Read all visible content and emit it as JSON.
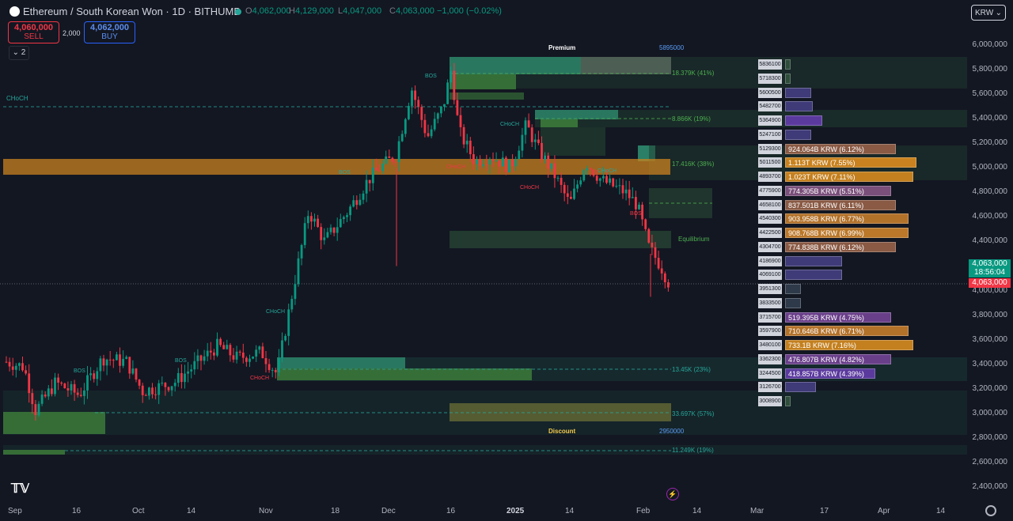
{
  "header": {
    "title": "Ethereum / South Korean Won · 1D · BITHUMB",
    "ohlc": [
      {
        "k": "O",
        "v": "4,062,000"
      },
      {
        "k": "H",
        "v": "4,129,000"
      },
      {
        "k": "L",
        "v": "4,047,000"
      },
      {
        "k": "C",
        "v": "4,063,000 −1,000 (−0.02%)"
      }
    ],
    "sell": {
      "price": "4,060,000",
      "label": "SELL"
    },
    "buy": {
      "price": "4,062,000",
      "label": "BUY"
    },
    "spread": "2,000",
    "indicators_count": "2",
    "currency": "KRW"
  },
  "price_axis": {
    "labels": [
      "6,000,000",
      "5,800,000",
      "5,600,000",
      "5,400,000",
      "5,200,000",
      "5,000,000",
      "4,800,000",
      "4,600,000",
      "4,400,000",
      "4,200,000",
      "4,000,000",
      "3,800,000",
      "3,600,000",
      "3,400,000",
      "3,200,000",
      "3,000,000",
      "2,800,000",
      "2,600,000",
      "2,400,000"
    ],
    "last_price": "4,063,000",
    "countdown": "18:56:04",
    "bid_price": "4,063,000"
  },
  "time_axis": [
    "Sep",
    "16",
    "Oct",
    "14",
    "Nov",
    "18",
    "Dec",
    "16",
    "2025",
    "14",
    "Feb",
    "14",
    "Mar",
    "17",
    "Apr",
    "14"
  ],
  "zones": {
    "premium": "Premium",
    "premium_price": "5895000",
    "discount": "Discount",
    "discount_price": "2950000",
    "equilibrium": "Equilibrium",
    "z1": "18.379K (41%)",
    "z2": "8.866K (19%)",
    "z3": "17.416K (38%)",
    "z4": "13.45K (23%)",
    "z5": "33.697K (57%)",
    "z6": "11.249K (19%)",
    "choch_left": "CHoCH"
  },
  "smc_labels": [
    {
      "t": "BOS",
      "c": "#26a69a"
    },
    {
      "t": "CHoCH",
      "c": "#26a69a"
    },
    {
      "t": "BOS",
      "c": "#26a69a"
    },
    {
      "t": "CHoCH",
      "c": "#f23645"
    },
    {
      "t": "CHoCH",
      "c": "#26a69a"
    },
    {
      "t": "BOS",
      "c": "#26a69a"
    },
    {
      "t": "CHoCH",
      "c": "#f23645"
    },
    {
      "t": "BOS",
      "c": "#26a69a"
    },
    {
      "t": "CHoCH",
      "c": "#26a69a"
    },
    {
      "t": "CHoCH",
      "c": "#f23645"
    },
    {
      "t": "BOS",
      "c": "#f23645"
    }
  ],
  "volume_profile": [
    {
      "price": "5836100",
      "text": "",
      "color": "#2e4d3b"
    },
    {
      "price": "5718300",
      "text": "",
      "color": "#2e4d3b"
    },
    {
      "price": "5600500",
      "text": "",
      "color": "#3f3a78"
    },
    {
      "price": "5482700",
      "text": "",
      "color": "#3f3a78"
    },
    {
      "price": "5364900",
      "text": "",
      "color": "#5b3a9e"
    },
    {
      "price": "5247100",
      "text": "",
      "color": "#3f3a78"
    },
    {
      "price": "5129300",
      "text": "924.064B KRW (6.12%)",
      "color": "#8a5a44"
    },
    {
      "price": "5011500",
      "text": "1.113T KRW (7.55%)",
      "color": "#c9821f"
    },
    {
      "price": "4893700",
      "text": "1.023T KRW (7.11%)",
      "color": "#c4801f"
    },
    {
      "price": "4775900",
      "text": "774.305B KRW (5.51%)",
      "color": "#7a4f7a"
    },
    {
      "price": "4658100",
      "text": "837.501B KRW (6.11%)",
      "color": "#8a5a44"
    },
    {
      "price": "4540300",
      "text": "903.958B KRW (6.77%)",
      "color": "#b3722a"
    },
    {
      "price": "4422500",
      "text": "908.768B KRW (6.99%)",
      "color": "#bb782a"
    },
    {
      "price": "4304700",
      "text": "774.838B KRW (6.12%)",
      "color": "#8a5a44"
    },
    {
      "price": "4186900",
      "text": "",
      "color": "#3f3a78"
    },
    {
      "price": "4069100",
      "text": "",
      "color": "#3f3a78"
    },
    {
      "price": "3951300",
      "text": "",
      "color": "#2e3a4a"
    },
    {
      "price": "3833500",
      "text": "",
      "color": "#2e3a4a"
    },
    {
      "price": "3715700",
      "text": "519.395B KRW (4.75%)",
      "color": "#6a3f8a"
    },
    {
      "price": "3597900",
      "text": "710.646B KRW (6.71%)",
      "color": "#b3722a"
    },
    {
      "price": "3480100",
      "text": "733.1B KRW (7.16%)",
      "color": "#c4801f"
    },
    {
      "price": "3362300",
      "text": "476.807B KRW (4.82%)",
      "color": "#6a3f8a"
    },
    {
      "price": "3244500",
      "text": "418.857B KRW (4.39%)",
      "color": "#5b3a9e"
    },
    {
      "price": "3126700",
      "text": "",
      "color": "#3f3a78"
    },
    {
      "price": "3008900",
      "text": "",
      "color": "#2e4d3b"
    }
  ],
  "vp_widths": [
    7,
    7,
    33,
    35,
    47,
    33,
    140,
    166,
    162,
    134,
    140,
    156,
    156,
    140,
    72,
    72,
    20,
    20,
    134,
    156,
    162,
    134,
    114,
    39,
    7
  ],
  "colors": {
    "up": "#089981",
    "down": "#f23645",
    "bg": "#131722"
  }
}
